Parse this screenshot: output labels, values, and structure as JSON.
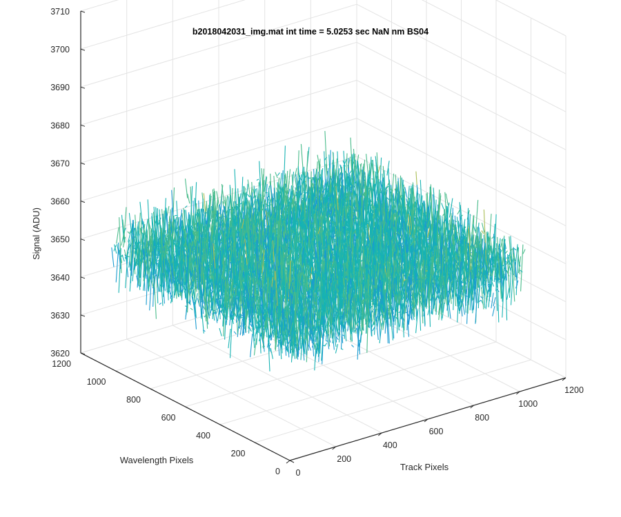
{
  "chart_data": {
    "type": "surface-3d",
    "title": "b2018042031_img.mat int time = 5.0253 sec  NaN nm BS04",
    "xlabel": "Track Pixels",
    "ylabel": "Wavelength Pixels",
    "zlabel": "Signal (ADU)",
    "xlim": [
      0,
      1200
    ],
    "ylim": [
      0,
      1200
    ],
    "zlim": [
      3620,
      3710
    ],
    "xticks": [
      "0",
      "200",
      "400",
      "600",
      "800",
      "1000",
      "1200"
    ],
    "yticks": [
      "0",
      "200",
      "400",
      "600",
      "800",
      "1000",
      "1200"
    ],
    "zticks": [
      "3620",
      "3630",
      "3640",
      "3650",
      "3660",
      "3670",
      "3680",
      "3690",
      "3700",
      "3710"
    ],
    "data_extent": {
      "x": [
        1,
        1024
      ],
      "y": [
        1,
        1024
      ]
    },
    "signal_mean": 3652,
    "signal_range": [
      3625,
      3690
    ],
    "colormap": [
      "#1f6fd1",
      "#1a9bd0",
      "#17b3b3",
      "#48bb8a",
      "#a9bd55",
      "#dcc03c"
    ],
    "grid": true,
    "view": "3d-isometric"
  }
}
